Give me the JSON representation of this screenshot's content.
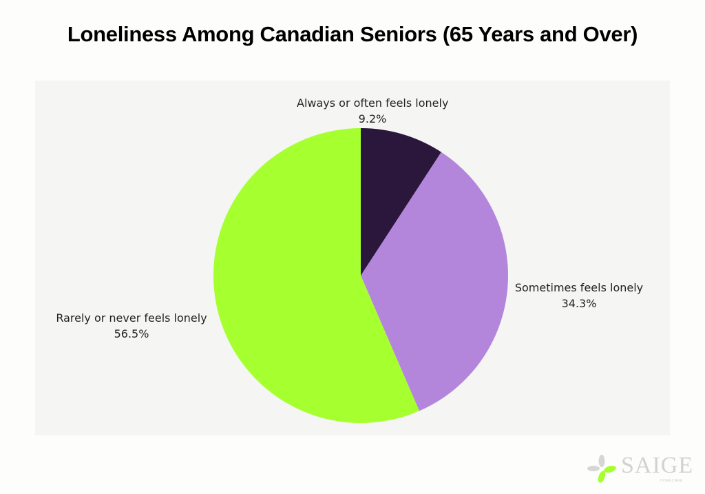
{
  "title": "Loneliness Among Canadian Seniors (65 Years and Over)",
  "labels": [
    {
      "name": "Always or often feels lonely",
      "value": "9.2%"
    },
    {
      "name": "Sometimes feels lonely",
      "value": "34.3%"
    },
    {
      "name": "Rarely or never feels lonely",
      "value": "56.5%"
    }
  ],
  "logo": {
    "text": "SAIGE",
    "subtext": "HOMECARE"
  },
  "colors": {
    "always_often": "#2b173b",
    "sometimes": "#b386dc",
    "rarely_never": "#a6ff2f",
    "panel_bg": "#f5f5f3"
  },
  "chart_data": {
    "type": "pie",
    "title": "Loneliness Among Canadian Seniors (65 Years and Over)",
    "categories": [
      "Always or often feels lonely",
      "Sometimes feels lonely",
      "Rarely or never feels lonely"
    ],
    "values": [
      9.2,
      34.3,
      56.5
    ],
    "unit": "%",
    "colors": [
      "#2b173b",
      "#b386dc",
      "#a6ff2f"
    ],
    "start_angle": "12 o'clock, clockwise",
    "legend": "none (direct labels)"
  }
}
